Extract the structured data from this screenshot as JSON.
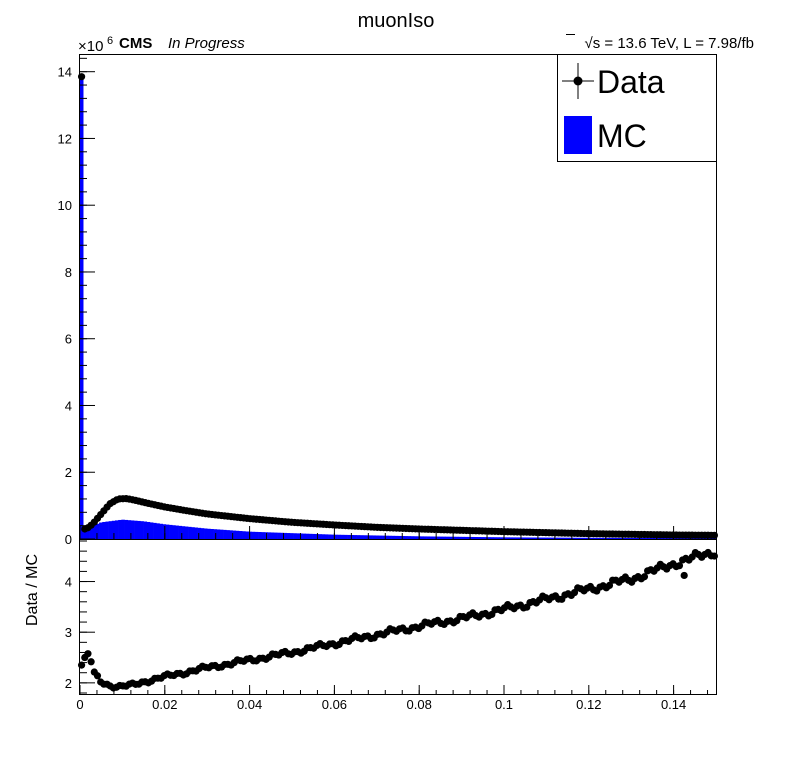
{
  "chart_data": {
    "type": "bar",
    "title": "muonIso",
    "experiment": "CMS",
    "status": "In Progress",
    "lumi_label": "√s = 13.6 TeV, L = 7.98/fb",
    "y_exponent_label": "×10",
    "y_exponent_power": "6",
    "xlim": [
      0,
      0.15
    ],
    "x_ticks": [
      0,
      0.02,
      0.04,
      0.06,
      0.08,
      0.1,
      0.12,
      0.14
    ],
    "x_tick_labels": [
      "0",
      "0.02",
      "0.04",
      "0.06",
      "0.08",
      "0.1",
      "0.12",
      "0.14"
    ],
    "main": {
      "ylim": [
        0,
        14.5
      ],
      "y_ticks": [
        0,
        2,
        4,
        6,
        8,
        10,
        12,
        14
      ],
      "y_tick_labels": [
        "0",
        "2",
        "4",
        "6",
        "8",
        "10",
        "12",
        "14"
      ],
      "first_bin_mc": 13.85,
      "first_bin_data": 13.85,
      "mc_anchors": [
        [
          0.002,
          0.35
        ],
        [
          0.005,
          0.5
        ],
        [
          0.01,
          0.58
        ],
        [
          0.015,
          0.53
        ],
        [
          0.02,
          0.44
        ],
        [
          0.03,
          0.31
        ],
        [
          0.04,
          0.22
        ],
        [
          0.06,
          0.13
        ],
        [
          0.08,
          0.08
        ],
        [
          0.1,
          0.05
        ],
        [
          0.12,
          0.035
        ],
        [
          0.15,
          0.025
        ]
      ],
      "data_anchors": [
        [
          0.0015,
          0.3
        ],
        [
          0.003,
          0.45
        ],
        [
          0.005,
          0.75
        ],
        [
          0.007,
          1.05
        ],
        [
          0.009,
          1.2
        ],
        [
          0.011,
          1.21
        ],
        [
          0.013,
          1.16
        ],
        [
          0.016,
          1.07
        ],
        [
          0.02,
          0.96
        ],
        [
          0.025,
          0.85
        ],
        [
          0.03,
          0.75
        ],
        [
          0.04,
          0.61
        ],
        [
          0.05,
          0.5
        ],
        [
          0.06,
          0.42
        ],
        [
          0.07,
          0.35
        ],
        [
          0.08,
          0.3
        ],
        [
          0.09,
          0.26
        ],
        [
          0.1,
          0.22
        ],
        [
          0.11,
          0.19
        ],
        [
          0.12,
          0.16
        ],
        [
          0.13,
          0.14
        ],
        [
          0.14,
          0.12
        ],
        [
          0.15,
          0.11
        ]
      ]
    },
    "ratio": {
      "ylabel": "Data / MC",
      "ylim": [
        1.78,
        4.82
      ],
      "y_ticks": [
        2,
        3,
        4
      ],
      "y_tick_labels": [
        "2",
        "3",
        "4"
      ],
      "anchors": [
        [
          0.00075,
          2.35
        ],
        [
          0.0015,
          2.65
        ],
        [
          0.0025,
          2.45
        ],
        [
          0.0035,
          2.18
        ],
        [
          0.005,
          2.02
        ],
        [
          0.007,
          1.95
        ],
        [
          0.009,
          1.92
        ],
        [
          0.012,
          1.95
        ],
        [
          0.015,
          2.02
        ],
        [
          0.02,
          2.12
        ],
        [
          0.03,
          2.3
        ],
        [
          0.04,
          2.45
        ],
        [
          0.05,
          2.6
        ],
        [
          0.06,
          2.78
        ],
        [
          0.07,
          2.95
        ],
        [
          0.08,
          3.12
        ],
        [
          0.09,
          3.27
        ],
        [
          0.1,
          3.45
        ],
        [
          0.11,
          3.65
        ],
        [
          0.12,
          3.85
        ],
        [
          0.13,
          4.05
        ],
        [
          0.14,
          4.35
        ],
        [
          0.15,
          4.6
        ]
      ],
      "outliers": [
        [
          0.1425,
          4.12
        ]
      ]
    },
    "legend": {
      "position": "top-right",
      "entries": [
        {
          "label": "Data",
          "marker": "point",
          "color": "#000000"
        },
        {
          "label": "MC",
          "marker": "box",
          "color": "#0000ff"
        }
      ]
    },
    "colors": {
      "mc": "#0000ff",
      "data": "#000000"
    }
  }
}
